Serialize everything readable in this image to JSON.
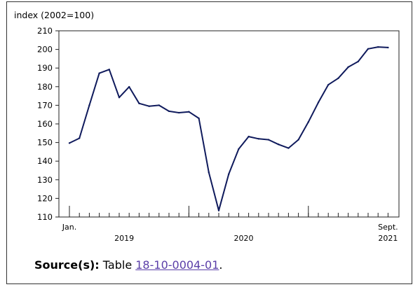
{
  "chart_data": {
    "type": "line",
    "ylabel": "index (2002=100)",
    "ylim": [
      110,
      210
    ],
    "yticks": [
      110,
      120,
      130,
      140,
      150,
      160,
      170,
      180,
      190,
      200,
      210
    ],
    "x_tick_labels": [
      {
        "month": 0,
        "label": "Jan."
      },
      {
        "month": 32,
        "label": "Sept."
      }
    ],
    "year_labels": [
      {
        "year": "2019",
        "from_month": 0,
        "to_month": 11
      },
      {
        "year": "2020",
        "from_month": 12,
        "to_month": 23
      },
      {
        "year": "2021",
        "from_month": 32,
        "to_month": 32
      }
    ],
    "year_boundaries": [
      0,
      12,
      24
    ],
    "series": [
      {
        "color": "#0f1a5c",
        "x": [
          "2019-01",
          "2019-02",
          "2019-03",
          "2019-04",
          "2019-05",
          "2019-06",
          "2019-07",
          "2019-08",
          "2019-09",
          "2019-10",
          "2019-11",
          "2019-12",
          "2020-01",
          "2020-02",
          "2020-03",
          "2020-04",
          "2020-05",
          "2020-06",
          "2020-07",
          "2020-08",
          "2020-09",
          "2020-10",
          "2020-11",
          "2020-12",
          "2021-01",
          "2021-02",
          "2021-03",
          "2021-04",
          "2021-05",
          "2021-06",
          "2021-07",
          "2021-08",
          "2021-09"
        ],
        "values": [
          149.7,
          152.3,
          170.0,
          187.2,
          189.2,
          174.2,
          179.9,
          171.0,
          169.5,
          170.0,
          166.8,
          166.0,
          166.5,
          163.0,
          134.0,
          113.5,
          133.0,
          146.5,
          153.2,
          152.0,
          151.5,
          149.0,
          147.0,
          151.5,
          161.0,
          171.5,
          181.0,
          184.5,
          190.5,
          193.5,
          200.3,
          201.3,
          201.0
        ]
      }
    ]
  },
  "source": {
    "label": "Source(s):",
    "text": "Table",
    "link": "18-10-0004-01",
    "end": "."
  }
}
